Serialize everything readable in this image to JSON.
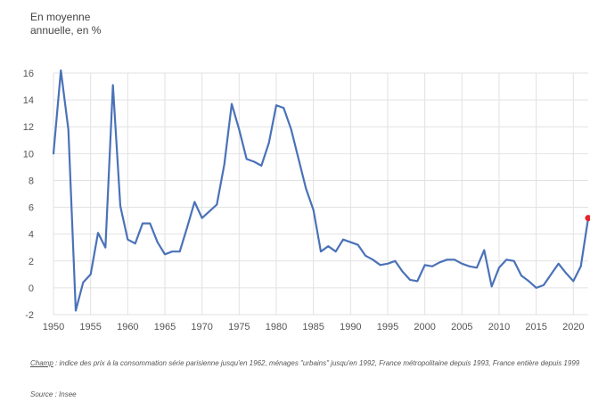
{
  "chart_data": {
    "type": "line",
    "unit_label_line1": "En moyenne",
    "unit_label_line2": "annuelle, en %",
    "xlim": [
      1950,
      2022
    ],
    "ylim": [
      -2,
      16
    ],
    "x_ticks": [
      1950,
      1955,
      1960,
      1965,
      1970,
      1975,
      1980,
      1985,
      1990,
      1995,
      2000,
      2005,
      2010,
      2015,
      2020
    ],
    "y_ticks": [
      -2,
      0,
      2,
      4,
      6,
      8,
      10,
      12,
      14,
      16
    ],
    "grid": true,
    "line_color": "#4a72b8",
    "highlight_color": "#e8232a",
    "series": [
      {
        "x": [
          1950,
          1951,
          1952,
          1953,
          1954,
          1955,
          1956,
          1957,
          1958,
          1959,
          1960,
          1961,
          1962,
          1963,
          1964,
          1965,
          1966,
          1967,
          1968,
          1969,
          1970,
          1971,
          1972,
          1973,
          1974,
          1975,
          1976,
          1977,
          1978,
          1979,
          1980,
          1981,
          1982,
          1983,
          1984,
          1985,
          1986,
          1987,
          1988,
          1989,
          1990,
          1991,
          1992,
          1993,
          1994,
          1995,
          1996,
          1997,
          1998,
          1999,
          2000,
          2001,
          2002,
          2003,
          2004,
          2005,
          2006,
          2007,
          2008,
          2009,
          2010,
          2011,
          2012,
          2013,
          2014,
          2015,
          2016,
          2017,
          2018,
          2019,
          2020,
          2021,
          2022
        ],
        "values": [
          10.0,
          16.2,
          11.8,
          -1.7,
          0.4,
          1.0,
          4.1,
          3.0,
          15.1,
          6.1,
          3.6,
          3.3,
          4.8,
          4.8,
          3.4,
          2.5,
          2.7,
          2.7,
          4.5,
          6.4,
          5.2,
          5.7,
          6.2,
          9.2,
          13.7,
          11.8,
          9.6,
          9.4,
          9.1,
          10.8,
          13.6,
          13.4,
          11.8,
          9.6,
          7.4,
          5.8,
          2.7,
          3.1,
          2.7,
          3.6,
          3.4,
          3.2,
          2.4,
          2.1,
          1.7,
          1.8,
          2.0,
          1.2,
          0.6,
          0.5,
          1.7,
          1.6,
          1.9,
          2.1,
          2.1,
          1.8,
          1.6,
          1.5,
          2.8,
          0.1,
          1.5,
          2.1,
          2.0,
          0.9,
          0.5,
          0.0,
          0.2,
          1.0,
          1.8,
          1.1,
          0.5,
          1.6,
          5.2
        ]
      }
    ],
    "highlight_point": {
      "x": 2022,
      "y": 5.2
    }
  },
  "note": {
    "champ_label": "Champ",
    "champ_text": " : indice des prix à la consommation série parisienne jusqu'en 1962, ménages \"urbains\" jusqu'en 1992, France métropolitaine depuis 1993, France entière depuis 1999",
    "source_text": "Source : Insee"
  }
}
